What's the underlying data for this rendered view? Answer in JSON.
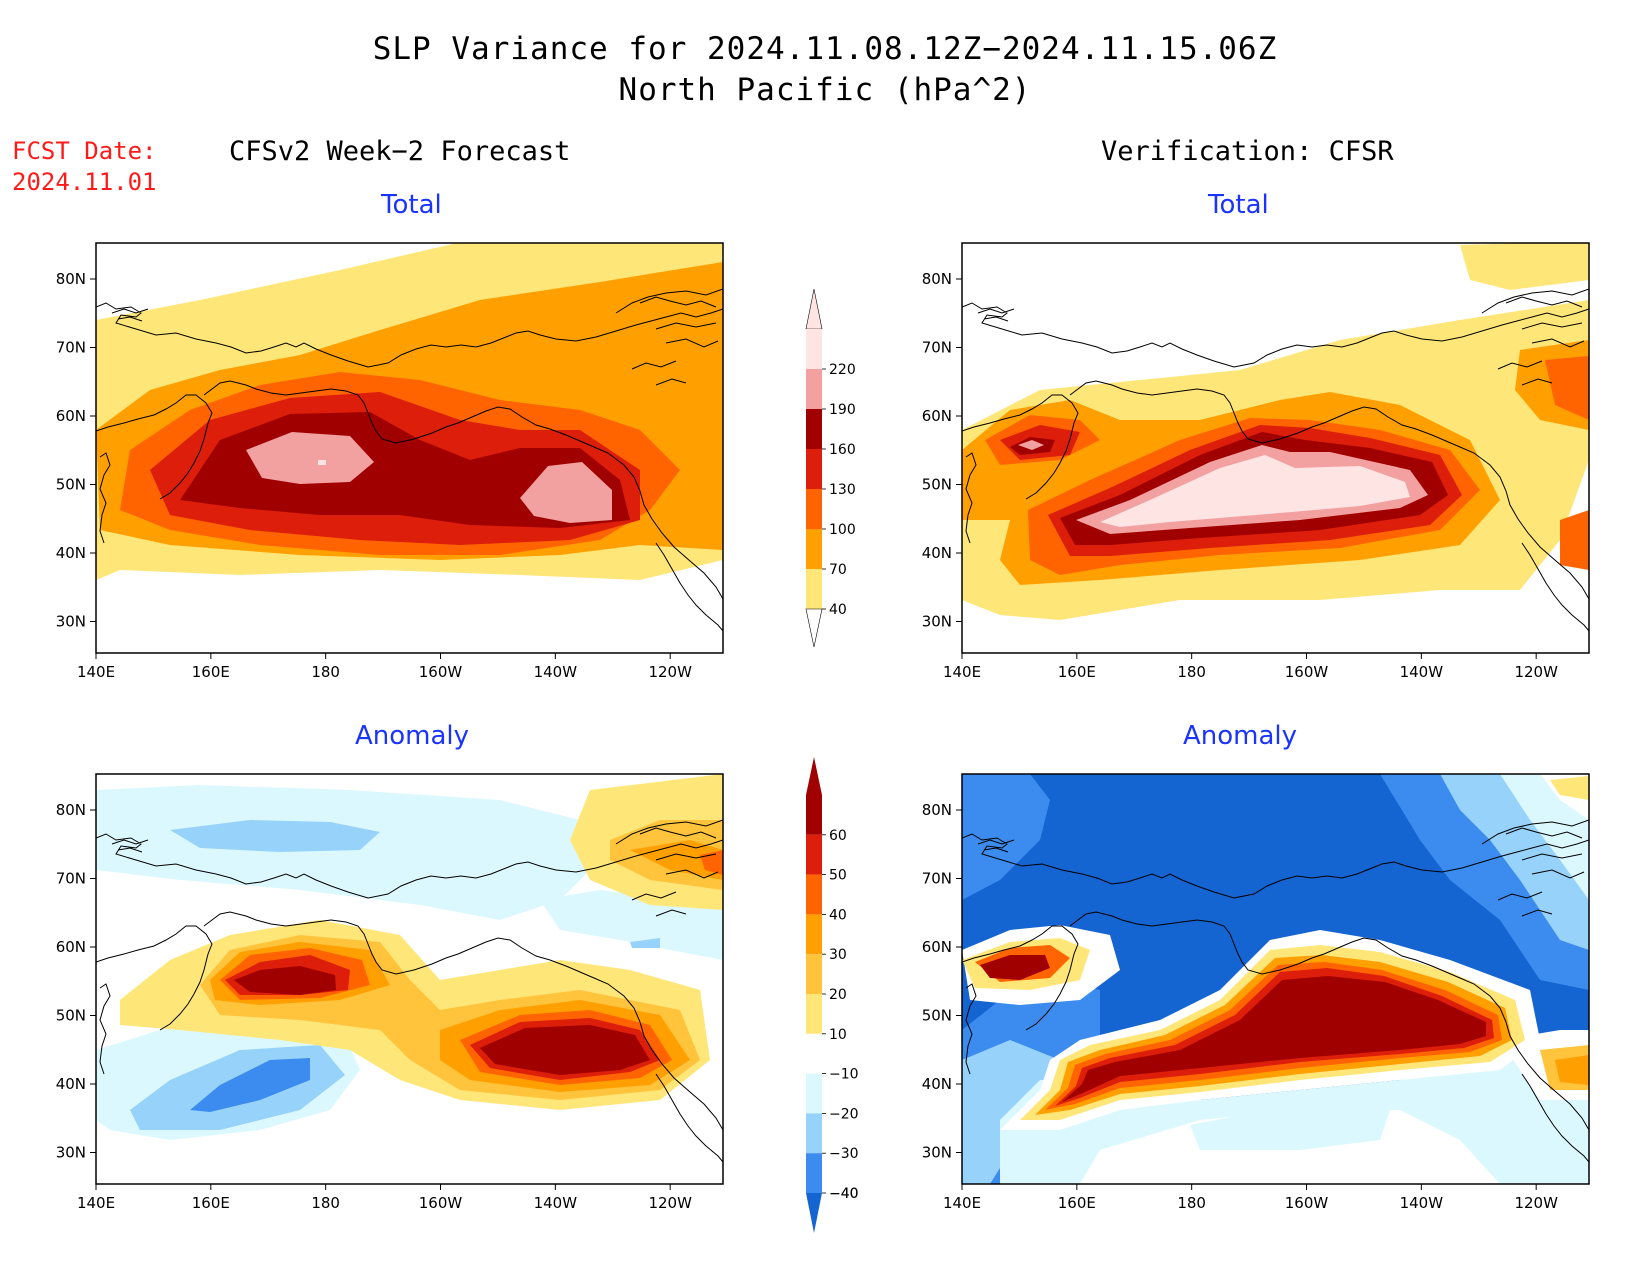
{
  "header": {
    "title_line1": "SLP Variance for 2024.11.08.12Z−2024.11.15.06Z",
    "title_line2": "North Pacific (hPa^2)",
    "fcst_line1": "FCST Date:",
    "fcst_line2": "2024.11.01",
    "left_title": "CFSv2 Week−2 Forecast",
    "right_title": "Verification: CFSR"
  },
  "panels": {
    "forecast_total": {
      "subtitle": "Total"
    },
    "verification_total": {
      "subtitle": "Total"
    },
    "forecast_anomaly": {
      "subtitle": "Anomaly"
    },
    "verification_anomaly": {
      "subtitle": "Anomaly"
    }
  },
  "axes": {
    "x_ticks": [
      "140E",
      "160E",
      "180",
      "160W",
      "140W",
      "120W"
    ],
    "y_ticks": [
      "80N",
      "70N",
      "60N",
      "50N",
      "40N",
      "30N"
    ]
  },
  "colorbars": {
    "total": {
      "labels": [
        "220",
        "190",
        "160",
        "130",
        "100",
        "70",
        "40"
      ],
      "colors": [
        "#ffe4e4",
        "#f2a0a0",
        "#a00000",
        "#dc1e0a",
        "#ff6400",
        "#ffa000",
        "#ffe678"
      ]
    },
    "anomaly": {
      "labels": [
        "60",
        "50",
        "40",
        "30",
        "20",
        "10",
        "−10",
        "−20",
        "−30",
        "−40"
      ],
      "colors": [
        "#a00000",
        "#dc1e0a",
        "#ff6400",
        "#ffa000",
        "#ffc33c",
        "#ffe678",
        "#ffffff",
        "#dcf8ff",
        "#96d2fa",
        "#3c8cf0",
        "#1464d2"
      ]
    }
  }
}
